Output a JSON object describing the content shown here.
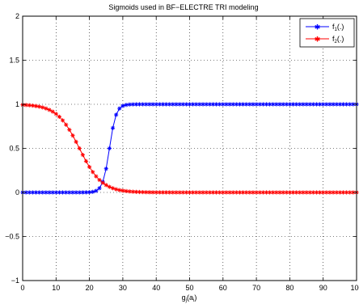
{
  "chart_data": {
    "type": "line",
    "title": "Sigmoids used in BF−ELECTRE TRI modeling",
    "xlabel": {
      "main": "g",
      "sub1": "j",
      "paren_open": "(a",
      "sub2": "i",
      "paren_close": ")"
    },
    "ylabel": "",
    "xlim": [
      0,
      100
    ],
    "ylim": [
      -1,
      2
    ],
    "xticks": [
      0,
      10,
      20,
      30,
      40,
      50,
      60,
      70,
      80,
      90,
      100
    ],
    "yticks": [
      -1,
      -0.5,
      0,
      0.5,
      1,
      1.5,
      2
    ],
    "ytick_labels": [
      "−1",
      "−0.5",
      "0",
      "0.5",
      "1",
      "1.5",
      "2"
    ],
    "grid": "dotted",
    "legend_position": "top-right",
    "x_step": 1,
    "series": [
      {
        "name": {
          "main": "f",
          "sub": "1",
          "rest": "(.)"
        },
        "color": "#0000ff",
        "marker": "star",
        "function": "increasing sigmoid, midpoint 26",
        "midpoint": 26,
        "steepness": 1.0
      },
      {
        "name": {
          "main": "f",
          "sub": "2",
          "rest": "(.)"
        },
        "color": "#ff0000",
        "marker": "star",
        "function": "decreasing sigmoid, midpoint 17",
        "midpoint": 17,
        "steepness": 0.3
      }
    ]
  }
}
